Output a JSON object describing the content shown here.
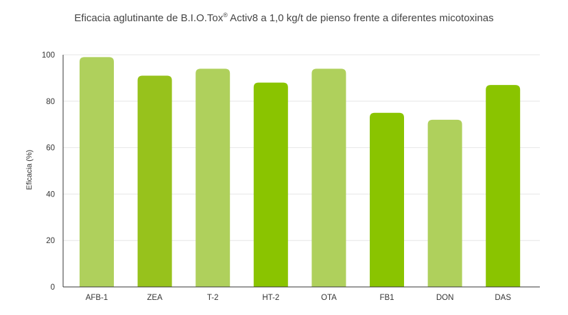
{
  "chart_data": {
    "type": "bar",
    "title_main": "Eficacia aglutinante de B.I.O.Tox",
    "title_mark": "®",
    "title_rest": " Activ8  a 1,0 kg/t de pienso frente a diferentes micotoxinas",
    "xlabel": "",
    "ylabel": "Eficacia (%)",
    "ylim": [
      0,
      100
    ],
    "yticks": [
      0,
      20,
      40,
      60,
      80,
      100
    ],
    "grid": true,
    "categories": [
      "AFB-1",
      "ZEA",
      "T-2",
      "HT-2",
      "OTA",
      "FB1",
      "DON",
      "DAS"
    ],
    "values": [
      99,
      91,
      94,
      88,
      94,
      75,
      72,
      87
    ],
    "colors": [
      "#afd05c",
      "#97c21c",
      "#afd05c",
      "#8ac400",
      "#afd05c",
      "#8ac400",
      "#afd05c",
      "#8ac400"
    ]
  }
}
